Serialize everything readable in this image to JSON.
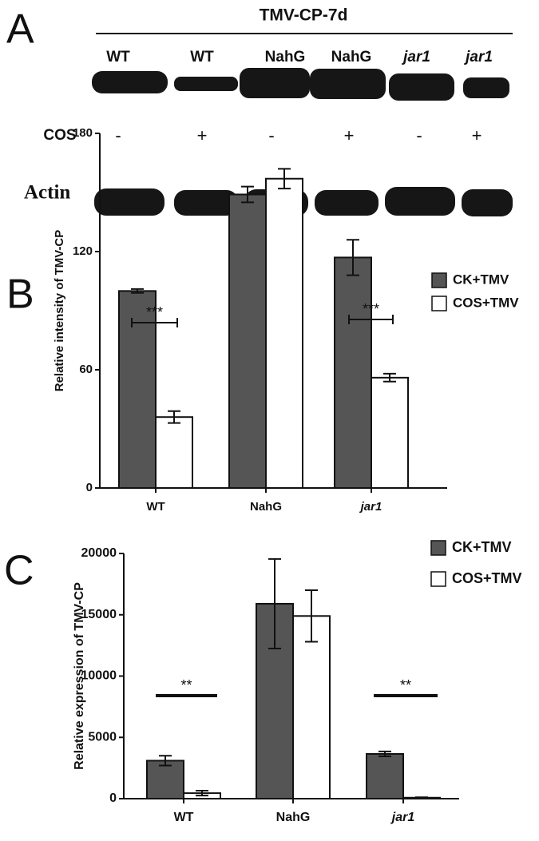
{
  "panel_a": {
    "label": "A",
    "title": "TMV-CP-7d",
    "lanes": [
      "WT",
      "WT",
      "NahG",
      "NahG",
      "jar1",
      "jar1"
    ],
    "treatment_label": "COS",
    "treatments": [
      "-",
      "+",
      "-",
      "+",
      "-",
      "+"
    ],
    "loading_label": "Actin"
  },
  "chart_data": [
    {
      "type": "bar",
      "panel": "B",
      "ylabel": "Relative intensity of TMV-CP",
      "categories": [
        "WT",
        "NahG",
        "jar1"
      ],
      "series": [
        {
          "name": "CK+TMV",
          "color": "#555555",
          "values": [
            100,
            149,
            117
          ],
          "errors": [
            1,
            4,
            9
          ]
        },
        {
          "name": "COS+TMV",
          "color": "#ffffff",
          "values": [
            36,
            157,
            56
          ],
          "errors": [
            3,
            5,
            2
          ]
        }
      ],
      "ylim": [
        0,
        180
      ],
      "yticks": [
        0,
        60,
        120,
        180
      ],
      "annotations": [
        "***",
        "***"
      ]
    },
    {
      "type": "bar",
      "panel": "C",
      "ylabel": "Relative expression of TMV-CP",
      "categories": [
        "WT",
        "NahG",
        "jar1"
      ],
      "series": [
        {
          "name": "CK+TMV",
          "color": "#555555",
          "values": [
            3100,
            15900,
            3650
          ],
          "errors": [
            400,
            3650,
            200
          ]
        },
        {
          "name": "COS+TMV",
          "color": "#ffffff",
          "values": [
            450,
            14900,
            80
          ],
          "errors": [
            200,
            2100,
            30
          ]
        }
      ],
      "ylim": [
        0,
        20000
      ],
      "yticks": [
        0,
        5000,
        10000,
        15000,
        20000
      ],
      "annotations": [
        "**",
        "**"
      ]
    }
  ]
}
